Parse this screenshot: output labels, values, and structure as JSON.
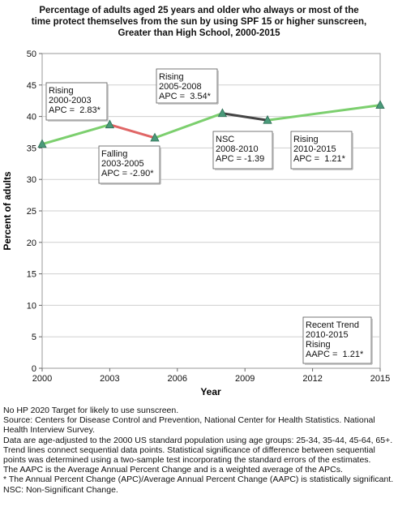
{
  "chart_data": {
    "type": "line",
    "title_lines": [
      "Percentage of adults aged 25 years and older who always or most of the",
      "time protect themselves from the sun by using SPF 15 or higher sunscreen,",
      "Greater than High School,  2000-2015"
    ],
    "xlabel": "Year",
    "ylabel": "Percent of adults",
    "xlim": [
      2000,
      2015
    ],
    "ylim": [
      0,
      50
    ],
    "x_ticks": [
      2000,
      2003,
      2006,
      2009,
      2012,
      2015
    ],
    "y_ticks": [
      0,
      5,
      10,
      15,
      20,
      25,
      30,
      35,
      40,
      45,
      50
    ],
    "grid": "horizontal",
    "points": [
      {
        "x": 2000,
        "y": 35.6
      },
      {
        "x": 2003,
        "y": 38.7
      },
      {
        "x": 2005,
        "y": 36.6
      },
      {
        "x": 2008,
        "y": 40.5
      },
      {
        "x": 2010,
        "y": 39.4
      },
      {
        "x": 2015,
        "y": 41.8
      }
    ],
    "segments": [
      {
        "from": 2000,
        "to": 2003,
        "trend": "rising",
        "color": "#7ccf6e"
      },
      {
        "from": 2003,
        "to": 2005,
        "trend": "falling",
        "color": "#e06666"
      },
      {
        "from": 2005,
        "to": 2008,
        "trend": "rising",
        "color": "#7ccf6e"
      },
      {
        "from": 2008,
        "to": 2010,
        "trend": "nsc",
        "color": "#444444"
      },
      {
        "from": 2010,
        "to": 2015,
        "trend": "rising",
        "color": "#7ccf6e"
      }
    ],
    "marker_color": "#4a9a7a",
    "annotations": [
      {
        "lines": [
          "Rising",
          "2000-2003",
          "APC =  2.83*"
        ],
        "boxed": true
      },
      {
        "lines": [
          "Falling",
          "2003-2005",
          "APC = -2.90*"
        ],
        "boxed": true
      },
      {
        "lines": [
          "Rising",
          "2005-2008",
          "APC =  3.54*"
        ],
        "boxed": true
      },
      {
        "lines": [
          "NSC",
          "2008-2010",
          "APC = -1.39"
        ],
        "boxed": true
      },
      {
        "lines": [
          "Rising",
          "2010-2015",
          "APC =  1.21*"
        ],
        "boxed": true
      },
      {
        "lines": [
          "Recent Trend",
          "2010-2015",
          "Rising",
          "AAPC =  1.21*"
        ],
        "boxed": true
      }
    ]
  },
  "footnotes": [
    "No HP 2020 Target for likely to use sunscreen.",
    "Source: Centers for Disease Control and Prevention, National Center for Health Statistics. National Health Interview Survey.",
    "Data are age-adjusted to the 2000 US standard population using age groups: 25-34, 35-44, 45-64, 65+.",
    "Trend lines connect sequential data points. Statistical significance of difference between sequential points was determined using a two-sample test incorporating the standard errors of the estimates.",
    "The AAPC is the Average Annual Percent Change and is a weighted average of the APCs.",
    "* The Annual Percent Change (APC)/Average Annual Percent Change (AAPC) is statistically significant.",
    "NSC: Non-Significant Change."
  ]
}
